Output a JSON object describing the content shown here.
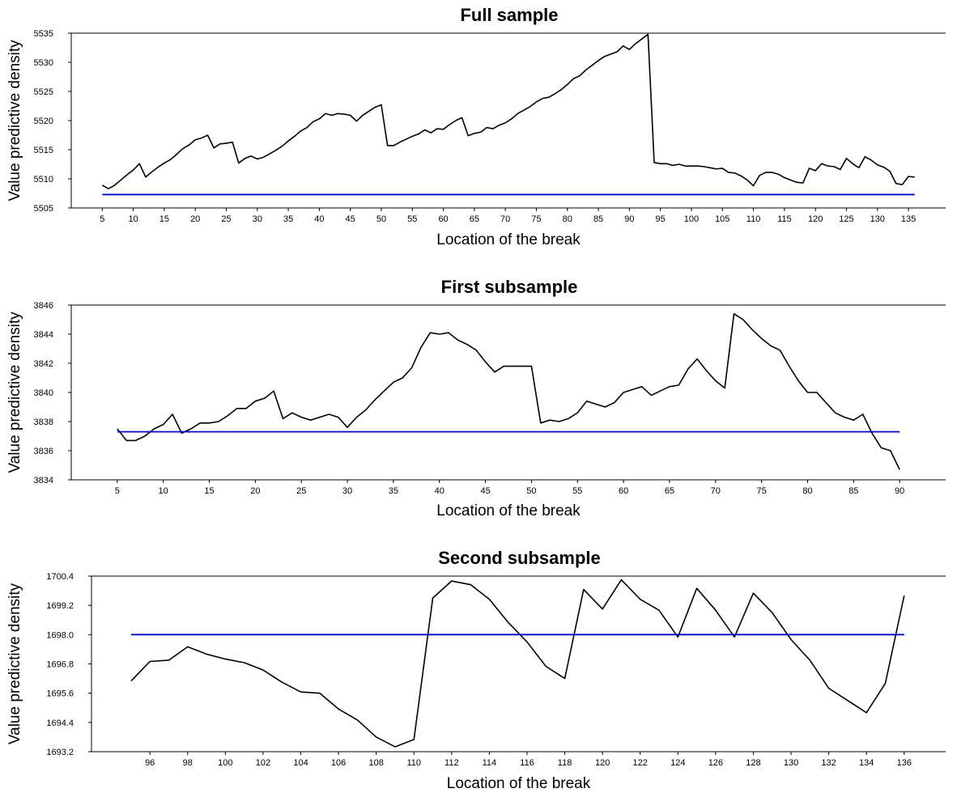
{
  "chart_data": [
    {
      "type": "line",
      "title": "Full sample",
      "xlabel": "Location of the break",
      "ylabel": "Value predictive density",
      "xlim": [
        0,
        141
      ],
      "ylim": [
        5505,
        5535
      ],
      "xticks": [
        5,
        10,
        15,
        20,
        25,
        30,
        35,
        40,
        45,
        50,
        55,
        60,
        65,
        70,
        75,
        80,
        85,
        90,
        95,
        100,
        105,
        110,
        115,
        120,
        125,
        130,
        135
      ],
      "yticks": [
        5505,
        5510,
        5515,
        5520,
        5525,
        5530,
        5535
      ],
      "ytick_decimals": 0,
      "grid": false,
      "series": [
        {
          "color": "#000000",
          "x": [
            5,
            6,
            7,
            8,
            9,
            10,
            11,
            12,
            13,
            14,
            15,
            16,
            17,
            18,
            19,
            20,
            21,
            22,
            23,
            24,
            25,
            26,
            27,
            28,
            29,
            30,
            31,
            32,
            33,
            34,
            35,
            36,
            37,
            38,
            39,
            40,
            41,
            42,
            43,
            44,
            45,
            46,
            47,
            48,
            49,
            50,
            51,
            52,
            53,
            54,
            55,
            56,
            57,
            58,
            59,
            60,
            61,
            62,
            63,
            64,
            65,
            66,
            67,
            68,
            69,
            70,
            71,
            72,
            73,
            74,
            75,
            76,
            77,
            78,
            79,
            80,
            81,
            82,
            83,
            84,
            85,
            86,
            87,
            88,
            89,
            90,
            91,
            92,
            93,
            94,
            95,
            96,
            97,
            98,
            99,
            100,
            101,
            102,
            103,
            104,
            105,
            106,
            107,
            108,
            109,
            110,
            111,
            112,
            113,
            114,
            115,
            116,
            117,
            118,
            119,
            120,
            121,
            122,
            123,
            124,
            125,
            126,
            127,
            128,
            129,
            130,
            131,
            132,
            133,
            134,
            135,
            136
          ],
          "y": [
            5508.9,
            5508.3,
            5508.9,
            5509.8,
            5510.7,
            5511.5,
            5512.6,
            5510.3,
            5511.2,
            5512.0,
            5512.7,
            5513.3,
            5514.2,
            5515.2,
            5515.8,
            5516.7,
            5517.0,
            5517.5,
            5515.3,
            5516.0,
            5516.1,
            5516.3,
            5512.7,
            5513.5,
            5513.9,
            5513.4,
            5513.7,
            5514.3,
            5514.9,
            5515.6,
            5516.5,
            5517.3,
            5518.2,
            5518.8,
            5519.8,
            5520.3,
            5521.2,
            5520.9,
            5521.2,
            5521.1,
            5520.9,
            5519.9,
            5520.9,
            5521.6,
            5522.3,
            5522.7,
            5515.7,
            5515.7,
            5516.3,
            5516.8,
            5517.3,
            5517.7,
            5518.4,
            5517.9,
            5518.6,
            5518.5,
            5519.3,
            5520.0,
            5520.5,
            5517.4,
            5517.8,
            5518.0,
            5518.8,
            5518.6,
            5519.2,
            5519.6,
            5520.3,
            5521.2,
            5521.8,
            5522.4,
            5523.2,
            5523.8,
            5524.0,
            5524.6,
            5525.3,
            5526.2,
            5527.2,
            5527.7,
            5528.7,
            5529.5,
            5530.3,
            5531.0,
            5531.4,
            5531.8,
            5532.8,
            5532.2,
            5533.2,
            5534.0,
            5534.8,
            5512.8,
            5512.6,
            5512.6,
            5512.3,
            5512.5,
            5512.2,
            5512.2,
            5512.2,
            5512.1,
            5511.9,
            5511.7,
            5511.8,
            5511.1,
            5511.0,
            5510.5,
            5509.8,
            5508.8,
            5510.6,
            5511.1,
            5511.1,
            5510.8,
            5510.2,
            5509.8,
            5509.4,
            5509.3,
            5511.8,
            5511.4,
            5512.6,
            5512.2,
            5512.1,
            5511.6,
            5513.5,
            5512.6,
            5511.9,
            5513.8,
            5513.2,
            5512.4,
            5512.0,
            5511.3,
            5509.2,
            5509.0,
            5510.4,
            5510.3
          ]
        },
        {
          "color": "#0000cc",
          "x": [
            5,
            136
          ],
          "y": [
            5507.3,
            5507.3
          ]
        }
      ]
    },
    {
      "type": "line",
      "title": "First subsample",
      "xlabel": "Location of the break",
      "ylabel": "Value predictive density",
      "xlim": [
        0,
        95
      ],
      "ylim": [
        3834,
        3846
      ],
      "xticks": [
        5,
        10,
        15,
        20,
        25,
        30,
        35,
        40,
        45,
        50,
        55,
        60,
        65,
        70,
        75,
        80,
        85,
        90
      ],
      "yticks": [
        3834,
        3836,
        3838,
        3840,
        3842,
        3844,
        3846
      ],
      "ytick_decimals": 0,
      "grid": false,
      "series": [
        {
          "color": "#000000",
          "x": [
            5,
            6,
            7,
            8,
            9,
            10,
            11,
            12,
            13,
            14,
            15,
            16,
            17,
            18,
            19,
            20,
            21,
            22,
            23,
            24,
            25,
            26,
            27,
            28,
            29,
            30,
            31,
            32,
            33,
            34,
            35,
            36,
            37,
            38,
            39,
            40,
            41,
            42,
            43,
            44,
            45,
            46,
            47,
            48,
            49,
            50,
            51,
            52,
            53,
            54,
            55,
            56,
            57,
            58,
            59,
            60,
            61,
            62,
            63,
            64,
            65,
            66,
            67,
            68,
            69,
            70,
            71,
            72,
            73,
            74,
            75,
            76,
            77,
            78,
            79,
            80,
            81,
            82,
            83,
            84,
            85,
            86,
            87,
            88,
            89,
            90
          ],
          "y": [
            3837.5,
            3836.7,
            3836.7,
            3837.0,
            3837.5,
            3837.8,
            3838.5,
            3837.2,
            3837.5,
            3837.9,
            3837.9,
            3838.0,
            3838.4,
            3838.9,
            3838.9,
            3839.4,
            3839.6,
            3840.1,
            3838.2,
            3838.6,
            3838.3,
            3838.1,
            3838.3,
            3838.5,
            3838.3,
            3837.6,
            3838.3,
            3838.8,
            3839.5,
            3840.1,
            3840.7,
            3841.0,
            3841.7,
            3843.1,
            3844.1,
            3844.0,
            3844.1,
            3843.6,
            3843.3,
            3842.9,
            3842.1,
            3841.4,
            3841.8,
            3841.8,
            3841.8,
            3841.8,
            3837.9,
            3838.1,
            3838.0,
            3838.2,
            3838.6,
            3839.4,
            3839.2,
            3839.0,
            3839.3,
            3840.0,
            3840.2,
            3840.4,
            3839.8,
            3840.1,
            3840.4,
            3840.5,
            3841.6,
            3842.3,
            3841.5,
            3840.8,
            3840.3,
            3845.4,
            3845.0,
            3844.3,
            3843.7,
            3843.2,
            3842.9,
            3841.8,
            3840.8,
            3840.0,
            3840.0,
            3839.3,
            3838.6,
            3838.3,
            3838.1,
            3838.5,
            3837.2,
            3836.2,
            3836.0,
            3834.7
          ]
        },
        {
          "color": "#0000cc",
          "x": [
            5,
            90
          ],
          "y": [
            3837.3,
            3837.3
          ]
        }
      ]
    },
    {
      "type": "line",
      "title": "Second subsample",
      "xlabel": "Location of the break",
      "ylabel": "Value predictive density",
      "xlim": [
        92.9,
        138.2
      ],
      "ylim": [
        1693.2,
        1700.4
      ],
      "xticks": [
        96,
        98,
        100,
        102,
        104,
        106,
        108,
        110,
        112,
        114,
        116,
        118,
        120,
        122,
        124,
        126,
        128,
        130,
        132,
        134,
        136
      ],
      "yticks": [
        1693.2,
        1694.4,
        1695.6,
        1696.8,
        1698.0,
        1699.2,
        1700.4
      ],
      "ytick_decimals": 1,
      "grid": false,
      "series": [
        {
          "color": "#000000",
          "x": [
            95,
            96,
            97,
            98,
            99,
            100,
            101,
            102,
            103,
            104,
            105,
            106,
            107,
            108,
            109,
            110,
            111,
            112,
            113,
            114,
            115,
            116,
            117,
            118,
            119,
            120,
            121,
            122,
            123,
            124,
            125,
            126,
            127,
            128,
            129,
            130,
            131,
            132,
            133,
            134,
            135,
            136
          ],
          "y": [
            1696.1,
            1696.9,
            1696.95,
            1697.5,
            1697.2,
            1697.0,
            1696.85,
            1696.55,
            1696.05,
            1695.65,
            1695.6,
            1694.95,
            1694.5,
            1693.8,
            1693.4,
            1693.7,
            1699.5,
            1700.2,
            1700.05,
            1699.45,
            1698.5,
            1697.7,
            1696.7,
            1696.2,
            1699.85,
            1699.05,
            1700.25,
            1699.45,
            1699.0,
            1697.9,
            1699.9,
            1699.0,
            1697.9,
            1699.7,
            1698.9,
            1697.8,
            1696.95,
            1695.8,
            1695.3,
            1694.8,
            1696.0,
            1699.6
          ]
        },
        {
          "color": "#0000cc",
          "x": [
            95,
            136
          ],
          "y": [
            1698.0,
            1698.0
          ]
        }
      ]
    }
  ]
}
